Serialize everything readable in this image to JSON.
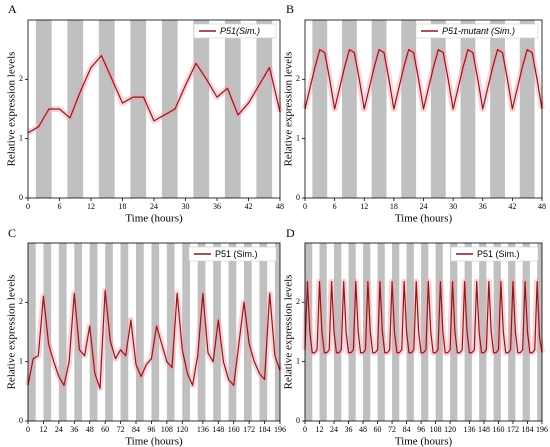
{
  "chart_data": [
    {
      "type": "line",
      "panel_label": "A",
      "xlabel": "Time (hours)",
      "ylabel": "Relative expression levels",
      "legend": "upper right",
      "legend_italic": true,
      "x": [
        0,
        2,
        4,
        6,
        8,
        10,
        12,
        14,
        16,
        18,
        20,
        22,
        24,
        26,
        28,
        30,
        32,
        34,
        36,
        38,
        40,
        42,
        44,
        46,
        48
      ],
      "series": [
        {
          "name": "P51(Sim.)",
          "color": "#8b1a1a",
          "values": [
            1.1,
            1.2,
            1.5,
            1.5,
            1.35,
            1.8,
            2.2,
            2.4,
            2.0,
            1.6,
            1.7,
            1.7,
            1.3,
            1.4,
            1.5,
            1.9,
            2.27,
            2.0,
            1.7,
            1.85,
            1.4,
            1.6,
            1.9,
            2.2,
            1.45
          ]
        }
      ],
      "xlim": [
        0,
        48
      ],
      "ylim": [
        0,
        3
      ],
      "xticks": [
        0,
        6,
        12,
        18,
        24,
        30,
        36,
        42,
        48
      ],
      "yticks": [
        0,
        1,
        2
      ],
      "shaded": [
        [
          1.5,
          4.5
        ],
        [
          7.5,
          10.5
        ],
        [
          13.5,
          16.5
        ],
        [
          19.5,
          22.5
        ],
        [
          25.5,
          28.5
        ],
        [
          31.5,
          34.5
        ],
        [
          37.5,
          40.5
        ],
        [
          43.5,
          46.5
        ]
      ],
      "shade_color": "#c0c0c0"
    },
    {
      "type": "line",
      "panel_label": "B",
      "xlabel": "Time (hours)",
      "ylabel": "Relative expression levels",
      "legend": "upper right",
      "legend_italic": true,
      "x": [
        0,
        1,
        2,
        3,
        4,
        5,
        6,
        7,
        8,
        9,
        10,
        11,
        12,
        13,
        14,
        15,
        16,
        17,
        18,
        19,
        20,
        21,
        22,
        23,
        24,
        25,
        26,
        27,
        28,
        29,
        30,
        31,
        32,
        33,
        34,
        35,
        36,
        37,
        38,
        39,
        40,
        41,
        42,
        43,
        44,
        45,
        46,
        47,
        48
      ],
      "series": [
        {
          "name": "P51-mutant (Sim.)",
          "color": "#8b1a1a",
          "values": [
            1.5,
            1.85,
            2.2,
            2.5,
            2.45,
            2.0,
            1.5,
            1.85,
            2.2,
            2.5,
            2.45,
            2.0,
            1.5,
            1.85,
            2.2,
            2.5,
            2.45,
            2.0,
            1.5,
            1.85,
            2.2,
            2.5,
            2.45,
            2.0,
            1.5,
            1.85,
            2.2,
            2.5,
            2.45,
            2.0,
            1.5,
            1.85,
            2.2,
            2.5,
            2.45,
            2.0,
            1.5,
            1.85,
            2.2,
            2.5,
            2.45,
            2.0,
            1.5,
            1.85,
            2.2,
            2.5,
            2.45,
            2.0,
            1.5
          ]
        }
      ],
      "xlim": [
        0,
        48
      ],
      "ylim": [
        0,
        3
      ],
      "xticks": [
        0,
        6,
        12,
        18,
        24,
        30,
        36,
        42,
        48
      ],
      "yticks": [
        0,
        1,
        2
      ],
      "shaded": [
        [
          1.5,
          4.5
        ],
        [
          7.5,
          10.5
        ],
        [
          13.5,
          16.5
        ],
        [
          19.5,
          22.5
        ],
        [
          25.5,
          28.5
        ],
        [
          31.5,
          34.5
        ],
        [
          37.5,
          40.5
        ],
        [
          43.5,
          46.5
        ]
      ],
      "shade_color": "#c0c0c0"
    },
    {
      "type": "line",
      "panel_label": "C",
      "xlabel": "Time (hours)",
      "ylabel": "Relative expression levels",
      "legend": "upper right",
      "legend_italic": false,
      "x": [
        0,
        4,
        8,
        12,
        16,
        20,
        24,
        28,
        32,
        36,
        40,
        44,
        48,
        52,
        56,
        60,
        64,
        68,
        72,
        76,
        80,
        84,
        88,
        92,
        96,
        100,
        104,
        108,
        112,
        116,
        120,
        124,
        128,
        132,
        136,
        140,
        144,
        148,
        152,
        156,
        160,
        164,
        168,
        172,
        176,
        180,
        184,
        188,
        192,
        196
      ],
      "series": [
        {
          "name": "P51 (Sim.)",
          "color": "#8b1a1a",
          "values": [
            0.6,
            1.05,
            1.1,
            2.1,
            1.3,
            1.0,
            0.75,
            0.6,
            1.0,
            2.15,
            1.2,
            1.1,
            1.6,
            0.8,
            0.55,
            2.2,
            1.35,
            1.05,
            1.2,
            1.1,
            1.7,
            0.95,
            0.75,
            0.95,
            1.05,
            1.6,
            1.3,
            1.0,
            0.9,
            2.15,
            1.2,
            0.8,
            0.6,
            1.1,
            2.15,
            1.15,
            1.0,
            1.7,
            1.0,
            0.7,
            0.6,
            1.3,
            2.0,
            1.3,
            1.0,
            0.8,
            0.7,
            2.15,
            1.1,
            0.85
          ]
        }
      ],
      "xlim": [
        0,
        196
      ],
      "ylim": [
        0,
        3
      ],
      "xticks": [
        0,
        12,
        24,
        36,
        48,
        60,
        72,
        84,
        96,
        108,
        120,
        136,
        148,
        160,
        172,
        184,
        196
      ],
      "yticks": [
        0,
        1,
        2
      ],
      "shaded": [
        [
          0,
          6
        ],
        [
          12,
          18
        ],
        [
          24,
          30
        ],
        [
          36,
          42
        ],
        [
          48,
          54
        ],
        [
          60,
          66
        ],
        [
          72,
          78
        ],
        [
          84,
          90
        ],
        [
          96,
          102
        ],
        [
          108,
          114
        ],
        [
          120,
          126
        ],
        [
          132,
          138
        ],
        [
          144,
          150
        ],
        [
          156,
          162
        ],
        [
          168,
          174
        ],
        [
          180,
          186
        ],
        [
          192,
          196
        ]
      ],
      "shade_color": "#c0c0c0"
    },
    {
      "type": "line",
      "panel_label": "D",
      "xlabel": "Time (hours)",
      "ylabel": "Relative expression levels",
      "legend": "upper right",
      "legend_italic": false,
      "x": [
        0,
        2,
        4,
        6,
        8,
        10,
        12,
        14,
        16,
        18,
        20,
        22,
        24,
        26,
        28,
        30,
        32,
        34,
        36,
        38,
        40,
        42,
        44,
        46,
        48,
        50,
        52,
        54,
        56,
        58,
        60,
        62,
        64,
        66,
        68,
        70,
        72,
        74,
        76,
        78,
        80,
        82,
        84,
        86,
        88,
        90,
        92,
        94,
        96,
        98,
        100,
        102,
        104,
        106,
        108,
        110,
        112,
        114,
        116,
        118,
        120,
        122,
        124,
        126,
        128,
        130,
        132,
        134,
        136,
        138,
        140,
        142,
        144,
        146,
        148,
        150,
        152,
        154,
        156,
        158,
        160,
        162,
        164,
        166,
        168,
        170,
        172,
        174,
        176,
        178,
        180,
        182,
        184,
        186,
        188,
        190,
        192,
        194,
        196
      ],
      "series": [
        {
          "name": "P51 (Sim.)",
          "color": "#8b1a1a",
          "values": [
            1.2,
            2.35,
            1.5,
            1.15,
            1.15,
            1.2,
            2.35,
            1.5,
            1.15,
            1.15,
            1.2,
            2.35,
            1.5,
            1.15,
            1.15,
            1.2,
            2.35,
            1.5,
            1.15,
            1.15,
            1.2,
            2.35,
            1.5,
            1.15,
            1.15,
            1.2,
            2.35,
            1.5,
            1.15,
            1.15,
            1.2,
            2.35,
            1.5,
            1.15,
            1.15,
            1.2,
            2.35,
            1.5,
            1.15,
            1.15,
            1.2,
            2.35,
            1.5,
            1.15,
            1.15,
            1.2,
            2.35,
            1.5,
            1.15,
            1.15,
            1.2,
            2.35,
            1.5,
            1.15,
            1.15,
            1.2,
            2.35,
            1.5,
            1.15,
            1.15,
            1.2,
            2.35,
            1.5,
            1.15,
            1.15,
            1.2,
            2.35,
            1.5,
            1.15,
            1.15,
            1.2,
            2.35,
            1.5,
            1.15,
            1.15,
            1.2,
            2.35,
            1.5,
            1.15,
            1.15,
            1.2,
            2.35,
            1.5,
            1.15,
            1.15,
            1.2,
            2.35,
            1.5,
            1.15,
            1.15,
            1.2,
            2.35,
            1.5,
            1.15,
            1.15,
            1.2,
            2.35,
            1.4,
            1.15
          ]
        }
      ],
      "xlim": [
        0,
        196
      ],
      "ylim": [
        0,
        3
      ],
      "xticks": [
        0,
        12,
        24,
        36,
        48,
        60,
        72,
        84,
        96,
        108,
        120,
        136,
        148,
        160,
        172,
        184,
        196
      ],
      "yticks": [
        0,
        1,
        2
      ],
      "shaded": [
        [
          0,
          6
        ],
        [
          12,
          18
        ],
        [
          24,
          30
        ],
        [
          36,
          42
        ],
        [
          48,
          54
        ],
        [
          60,
          66
        ],
        [
          72,
          78
        ],
        [
          84,
          90
        ],
        [
          96,
          102
        ],
        [
          108,
          114
        ],
        [
          120,
          126
        ],
        [
          132,
          138
        ],
        [
          144,
          150
        ],
        [
          156,
          162
        ],
        [
          168,
          174
        ],
        [
          180,
          186
        ],
        [
          192,
          196
        ]
      ],
      "shade_color": "#c0c0c0"
    }
  ]
}
